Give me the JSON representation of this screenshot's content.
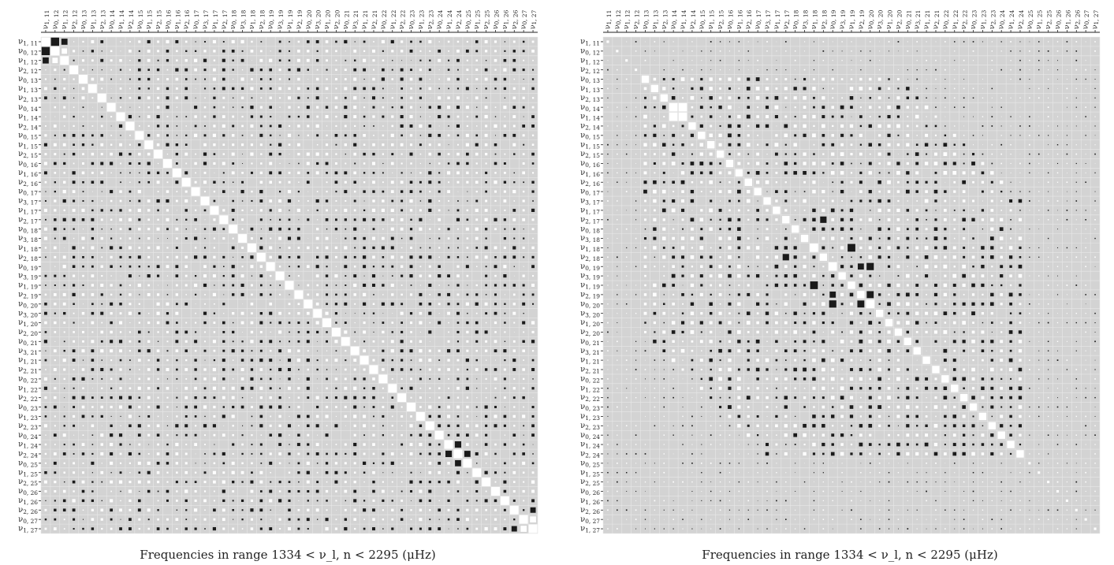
{
  "figure": {
    "caption_left": "Frequencies in range 1334 < ν_l, n < 2295 (μHz)",
    "caption_right": "Frequencies in range 1334 < ν_l, n < 2295 (μHz)"
  },
  "chart_data": [
    {
      "type": "heatmap",
      "title": "",
      "xlabel": "Frequencies in range 1334 < ν_l, n < 2295 (μHz)",
      "ylabel": "",
      "encoding": "Hinton-style matrix: square size = magnitude, white = positive, black = negative",
      "grid": true,
      "colors": {
        "background": "#d3d3d3",
        "positive": "#ffffff",
        "negative": "#1a1a1a"
      },
      "labels": [
        "ν1, 11",
        "ν0, 12",
        "ν1, 12",
        "ν2, 12",
        "ν0, 13",
        "ν1, 13",
        "ν2, 13",
        "ν0, 14",
        "ν1, 14",
        "ν2, 14",
        "ν0, 15",
        "ν1, 15",
        "ν2, 15",
        "ν0, 16",
        "ν1, 16",
        "ν2, 16",
        "ν0, 17",
        "ν3, 17",
        "ν1, 17",
        "ν2, 17",
        "ν0, 18",
        "ν3, 18",
        "ν1, 18",
        "ν2, 18",
        "ν0, 19",
        "ν3, 19",
        "ν1, 19",
        "ν2, 19",
        "ν0, 20",
        "ν3, 20",
        "ν1, 20",
        "ν2, 20",
        "ν0, 21",
        "ν3, 21",
        "ν1, 21",
        "ν2, 21",
        "ν0, 22",
        "ν1, 22",
        "ν2, 22",
        "ν0, 23",
        "ν1, 23",
        "ν2, 23",
        "ν0, 24",
        "ν1, 24",
        "ν2, 24",
        "ν0, 25",
        "ν1, 25",
        "ν2, 25",
        "ν0, 26",
        "ν1, 26",
        "ν2, 26",
        "ν0, 27",
        "ν1, 27"
      ],
      "diagonal": 1.0,
      "offdiag_cells": [
        [
          0,
          1,
          -0.9
        ],
        [
          1,
          0,
          -0.9
        ],
        [
          0,
          2,
          -0.5
        ],
        [
          2,
          0,
          -0.5
        ],
        [
          43,
          44,
          -0.55
        ],
        [
          44,
          43,
          -0.55
        ],
        [
          44,
          45,
          -0.5
        ],
        [
          45,
          44,
          -0.5
        ],
        [
          50,
          52,
          -0.4
        ],
        [
          52,
          50,
          -0.4
        ],
        [
          51,
          52,
          0.5
        ],
        [
          52,
          51,
          0.5
        ],
        [
          1,
          2,
          0.4
        ],
        [
          2,
          1,
          0.4
        ]
      ],
      "offdiag_magnitude": 0.15
    },
    {
      "type": "heatmap",
      "title": "",
      "xlabel": "Frequencies in range 1334 < ν_l, n < 2295 (μHz)",
      "ylabel": "",
      "encoding": "Hinton-style matrix: square size = magnitude, white = positive, black = negative",
      "grid": true,
      "colors": {
        "background": "#d3d3d3",
        "positive": "#ffffff",
        "negative": "#1a1a1a"
      },
      "labels": [
        "ν1, 11",
        "ν0, 12",
        "ν1, 12",
        "ν2, 12",
        "ν0, 13",
        "ν1, 13",
        "ν2, 13",
        "ν0, 14",
        "ν1, 14",
        "ν2, 14",
        "ν0, 15",
        "ν1, 15",
        "ν2, 15",
        "ν0, 16",
        "ν1, 16",
        "ν2, 16",
        "ν0, 17",
        "ν3, 17",
        "ν1, 17",
        "ν2, 17",
        "ν0, 18",
        "ν3, 18",
        "ν1, 18",
        "ν2, 18",
        "ν0, 19",
        "ν3, 19",
        "ν1, 19",
        "ν2, 19",
        "ν0, 20",
        "ν3, 20",
        "ν1, 20",
        "ν2, 20",
        "ν0, 21",
        "ν3, 21",
        "ν1, 21",
        "ν2, 21",
        "ν0, 22",
        "ν1, 22",
        "ν2, 22",
        "ν0, 23",
        "ν1, 23",
        "ν2, 23",
        "ν0, 24",
        "ν1, 24",
        "ν2, 24",
        "ν0, 25",
        "ν1, 25",
        "ν2, 25",
        "ν0, 26",
        "ν1, 26",
        "ν2, 26",
        "ν0, 27",
        "ν1, 27"
      ],
      "diagonal": "varies (large white squares on diagonal rows 4–44, small elsewhere)",
      "offdiag_cells": [
        [
          7,
          8,
          0.95
        ],
        [
          8,
          7,
          0.95
        ],
        [
          22,
          26,
          -0.8
        ],
        [
          26,
          22,
          -0.8
        ],
        [
          24,
          28,
          -0.7
        ],
        [
          28,
          24,
          -0.7
        ],
        [
          19,
          23,
          -0.55
        ],
        [
          23,
          19,
          -0.55
        ],
        [
          27,
          28,
          -0.65
        ],
        [
          28,
          27,
          -0.65
        ],
        [
          24,
          27,
          -0.5
        ],
        [
          27,
          24,
          -0.5
        ]
      ],
      "offdiag_magnitude": 0.12
    }
  ]
}
